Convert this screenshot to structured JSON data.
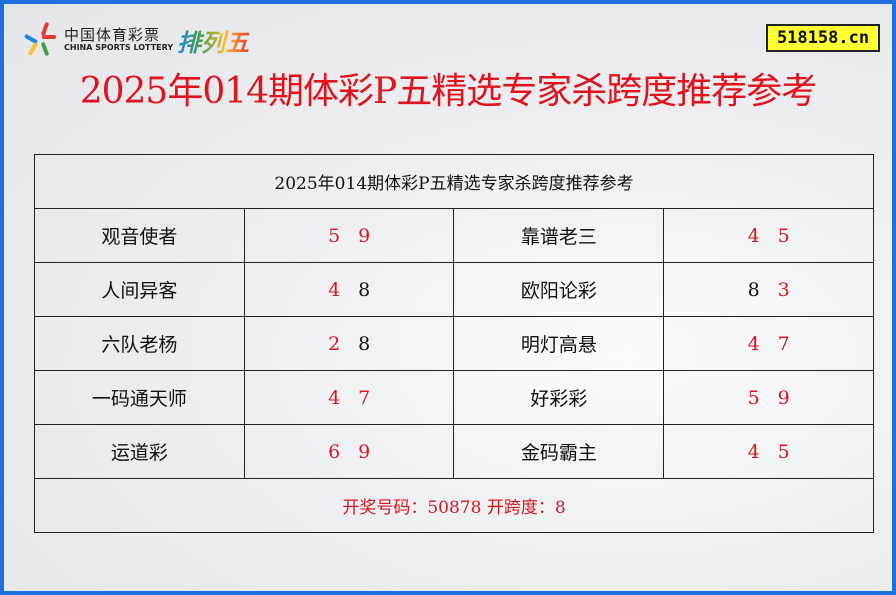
{
  "header": {
    "logo_cn": "中国体育彩票",
    "logo_en": "CHINA SPORTS LOTTERY",
    "logo_game": "排列五",
    "site_badge": "518158.cn",
    "title": "2025年014期体彩P五精选专家杀跨度推荐参考"
  },
  "table": {
    "caption": "2025年014期体彩P五精选专家杀跨度推荐参考",
    "rows": [
      [
        {
          "name": "观音使者",
          "nums": [
            {
              "v": "5",
              "hit": true
            },
            {
              "v": "9",
              "hit": true
            }
          ]
        },
        {
          "name": "靠谱老三",
          "nums": [
            {
              "v": "4",
              "hit": true
            },
            {
              "v": "5",
              "hit": true
            }
          ]
        }
      ],
      [
        {
          "name": "人间异客",
          "nums": [
            {
              "v": "4",
              "hit": true
            },
            {
              "v": "8",
              "hit": false
            }
          ]
        },
        {
          "name": "欧阳论彩",
          "nums": [
            {
              "v": "8",
              "hit": false
            },
            {
              "v": "3",
              "hit": true
            }
          ]
        }
      ],
      [
        {
          "name": "六队老杨",
          "nums": [
            {
              "v": "2",
              "hit": true
            },
            {
              "v": "8",
              "hit": false
            }
          ]
        },
        {
          "name": "明灯高悬",
          "nums": [
            {
              "v": "4",
              "hit": true
            },
            {
              "v": "7",
              "hit": true
            }
          ]
        }
      ],
      [
        {
          "name": "一码通天师",
          "nums": [
            {
              "v": "4",
              "hit": true
            },
            {
              "v": "7",
              "hit": true
            }
          ]
        },
        {
          "name": "好彩彩",
          "nums": [
            {
              "v": "5",
              "hit": true
            },
            {
              "v": "9",
              "hit": true
            }
          ]
        }
      ],
      [
        {
          "name": "运道彩",
          "nums": [
            {
              "v": "6",
              "hit": true
            },
            {
              "v": "9",
              "hit": true
            }
          ]
        },
        {
          "name": "金码霸主",
          "nums": [
            {
              "v": "4",
              "hit": true
            },
            {
              "v": "5",
              "hit": true
            }
          ]
        }
      ]
    ],
    "footer": "开奖号码：50878 开跨度：8"
  },
  "colors": {
    "hit": "#e0141e",
    "normal": "#111111",
    "border": "#1e6fe0",
    "badge": "#ffff33"
  }
}
